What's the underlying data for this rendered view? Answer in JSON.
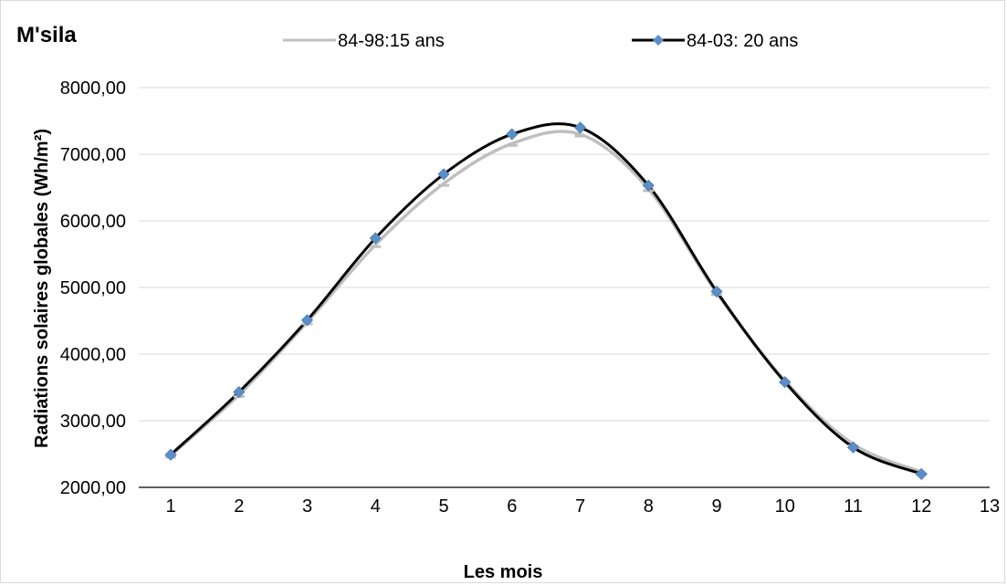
{
  "chart_data": {
    "type": "line",
    "title": "M'sila",
    "xlabel": "Les mois",
    "ylabel": "Radiations solaires globales (Wh/m²)",
    "xlim": [
      1,
      13
    ],
    "ylim": [
      2000,
      8000
    ],
    "x_ticks": [
      "1",
      "2",
      "3",
      "4",
      "5",
      "6",
      "7",
      "8",
      "9",
      "10",
      "11",
      "12",
      "13"
    ],
    "y_ticks": [
      "2000,00",
      "3000,00",
      "4000,00",
      "5000,00",
      "6000,00",
      "7000,00",
      "8000,00"
    ],
    "grid": "horizontal",
    "legend_position": "top",
    "x": [
      1,
      2,
      3,
      4,
      5,
      6,
      7,
      8,
      9,
      10,
      11,
      12
    ],
    "series": [
      {
        "name": "84-98:15 ans",
        "color": "#bfbfbf",
        "marker": "dash",
        "values": [
          2480,
          3390,
          4480,
          5640,
          6560,
          7160,
          7300,
          6480,
          4920,
          3600,
          2650,
          2230
        ]
      },
      {
        "name": "84-03: 20 ans",
        "color": "#000000",
        "marker": "diamond",
        "marker_color": "#5b8fc7",
        "values": [
          2490,
          3430,
          4510,
          5740,
          6700,
          7300,
          7400,
          6530,
          4940,
          3580,
          2600,
          2200
        ]
      }
    ]
  }
}
